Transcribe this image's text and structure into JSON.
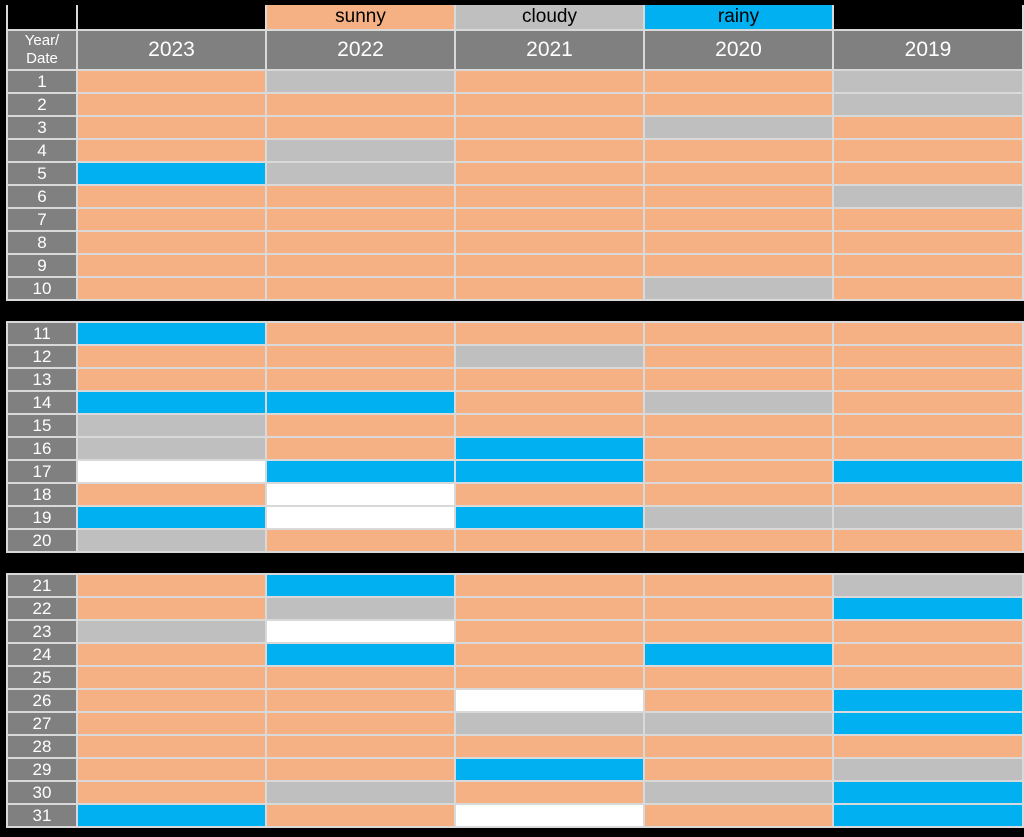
{
  "colors": {
    "page_background": "#000000",
    "gridline": "#D9D9D9",
    "header_bg": "#808080",
    "header_text": "#FFFFFF",
    "legend_text": "#000000",
    "sunny": "#F5B183",
    "cloudy": "#BFBFBF",
    "rainy": "#00B0F0",
    "blank": "#FFFFFF"
  },
  "legend_labels": [
    "sunny",
    "cloudy",
    "rainy"
  ],
  "chart_data": {
    "type": "heatmap",
    "corner_label": "Year/\nDate",
    "x_labels": [
      "2023",
      "2022",
      "2021",
      "2020",
      "2019"
    ],
    "y_labels": [
      "1",
      "2",
      "3",
      "4",
      "5",
      "6",
      "7",
      "8",
      "9",
      "10",
      "11",
      "12",
      "13",
      "14",
      "15",
      "16",
      "17",
      "18",
      "19",
      "20",
      "21",
      "22",
      "23",
      "24",
      "25",
      "26",
      "27",
      "28",
      "29",
      "30",
      "31"
    ],
    "cell_categories": [
      "sunny",
      "cloudy",
      "rainy",
      "blank"
    ],
    "legend_position": "top",
    "sections": [
      [
        1,
        10
      ],
      [
        11,
        20
      ],
      [
        21,
        31
      ]
    ],
    "values": [
      [
        "sunny",
        "cloudy",
        "sunny",
        "sunny",
        "cloudy"
      ],
      [
        "sunny",
        "sunny",
        "sunny",
        "sunny",
        "cloudy"
      ],
      [
        "sunny",
        "sunny",
        "sunny",
        "cloudy",
        "sunny"
      ],
      [
        "sunny",
        "cloudy",
        "sunny",
        "sunny",
        "sunny"
      ],
      [
        "rainy",
        "cloudy",
        "sunny",
        "sunny",
        "sunny"
      ],
      [
        "sunny",
        "sunny",
        "sunny",
        "sunny",
        "cloudy"
      ],
      [
        "sunny",
        "sunny",
        "sunny",
        "sunny",
        "sunny"
      ],
      [
        "sunny",
        "sunny",
        "sunny",
        "sunny",
        "sunny"
      ],
      [
        "sunny",
        "sunny",
        "sunny",
        "sunny",
        "sunny"
      ],
      [
        "sunny",
        "sunny",
        "sunny",
        "cloudy",
        "sunny"
      ],
      [
        "rainy",
        "sunny",
        "sunny",
        "sunny",
        "sunny"
      ],
      [
        "sunny",
        "sunny",
        "cloudy",
        "sunny",
        "sunny"
      ],
      [
        "sunny",
        "sunny",
        "sunny",
        "sunny",
        "sunny"
      ],
      [
        "rainy",
        "rainy",
        "sunny",
        "cloudy",
        "sunny"
      ],
      [
        "cloudy",
        "sunny",
        "sunny",
        "sunny",
        "sunny"
      ],
      [
        "cloudy",
        "sunny",
        "rainy",
        "sunny",
        "sunny"
      ],
      [
        "blank",
        "rainy",
        "rainy",
        "sunny",
        "rainy"
      ],
      [
        "sunny",
        "blank",
        "sunny",
        "sunny",
        "sunny"
      ],
      [
        "rainy",
        "blank",
        "rainy",
        "cloudy",
        "cloudy"
      ],
      [
        "cloudy",
        "sunny",
        "sunny",
        "sunny",
        "sunny"
      ],
      [
        "sunny",
        "rainy",
        "sunny",
        "sunny",
        "cloudy"
      ],
      [
        "sunny",
        "cloudy",
        "sunny",
        "sunny",
        "rainy"
      ],
      [
        "cloudy",
        "blank",
        "sunny",
        "sunny",
        "sunny"
      ],
      [
        "sunny",
        "rainy",
        "sunny",
        "rainy",
        "sunny"
      ],
      [
        "sunny",
        "sunny",
        "sunny",
        "sunny",
        "sunny"
      ],
      [
        "sunny",
        "sunny",
        "blank",
        "sunny",
        "rainy"
      ],
      [
        "sunny",
        "sunny",
        "cloudy",
        "cloudy",
        "rainy"
      ],
      [
        "sunny",
        "sunny",
        "sunny",
        "sunny",
        "sunny"
      ],
      [
        "sunny",
        "sunny",
        "rainy",
        "sunny",
        "cloudy"
      ],
      [
        "sunny",
        "cloudy",
        "sunny",
        "cloudy",
        "rainy"
      ],
      [
        "rainy",
        "sunny",
        "blank",
        "sunny",
        "rainy"
      ]
    ]
  }
}
